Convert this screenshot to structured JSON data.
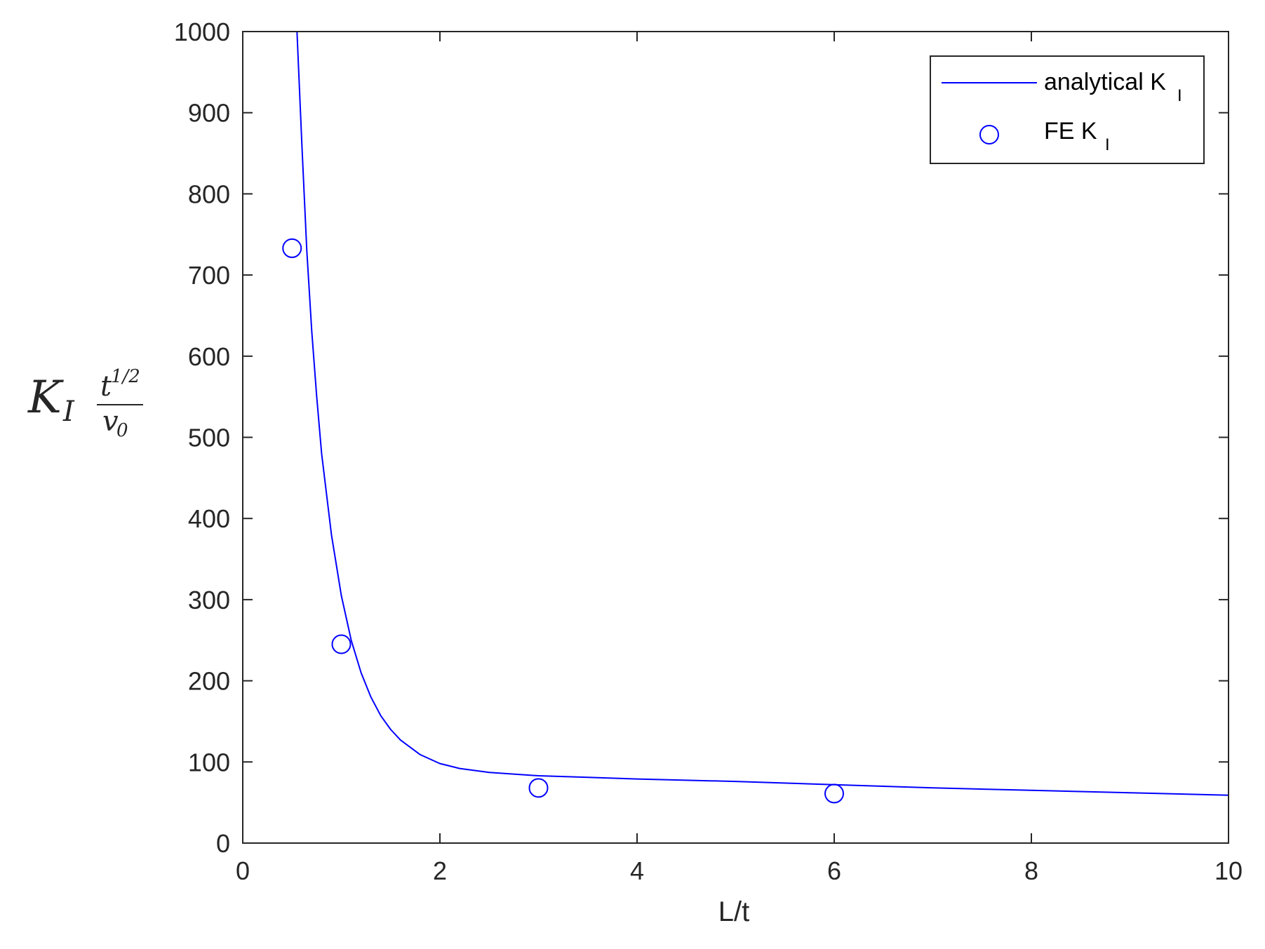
{
  "chart_data": {
    "type": "line",
    "xlabel": "L/t",
    "ylabel": {
      "main": "K",
      "main_sub": "I",
      "numerator": "t",
      "numerator_sup": "1/2",
      "denominator": "v",
      "denominator_sub": "0"
    },
    "xlim": [
      0,
      10
    ],
    "ylim": [
      0,
      1000
    ],
    "xticks": [
      0,
      2,
      4,
      6,
      8,
      10
    ],
    "yticks": [
      0,
      100,
      200,
      300,
      400,
      500,
      600,
      700,
      800,
      900,
      1000
    ],
    "grid": false,
    "legend_position": "top-right",
    "series": [
      {
        "name": "analytical K",
        "name_sub": "I",
        "style": "line",
        "color": "#0000ff",
        "x": [
          0.55,
          0.6,
          0.65,
          0.7,
          0.75,
          0.8,
          0.9,
          1.0,
          1.1,
          1.2,
          1.3,
          1.4,
          1.5,
          1.6,
          1.8,
          2.0,
          2.2,
          2.5,
          3.0,
          3.5,
          4.0,
          5.0,
          6.0,
          7.0,
          8.0,
          9.0,
          10.0
        ],
        "y": [
          1000,
          860,
          730,
          630,
          550,
          480,
          380,
          305,
          250,
          210,
          180,
          157,
          140,
          127,
          109,
          98,
          92,
          87,
          83,
          81,
          79,
          76,
          72,
          68,
          65,
          62,
          59
        ]
      },
      {
        "name": "FE K",
        "name_sub": "I",
        "style": "marker",
        "marker": "circle",
        "color": "#0000ff",
        "x": [
          0.5,
          1.0,
          3.0,
          6.0
        ],
        "y": [
          733,
          245,
          68,
          61
        ]
      }
    ]
  }
}
